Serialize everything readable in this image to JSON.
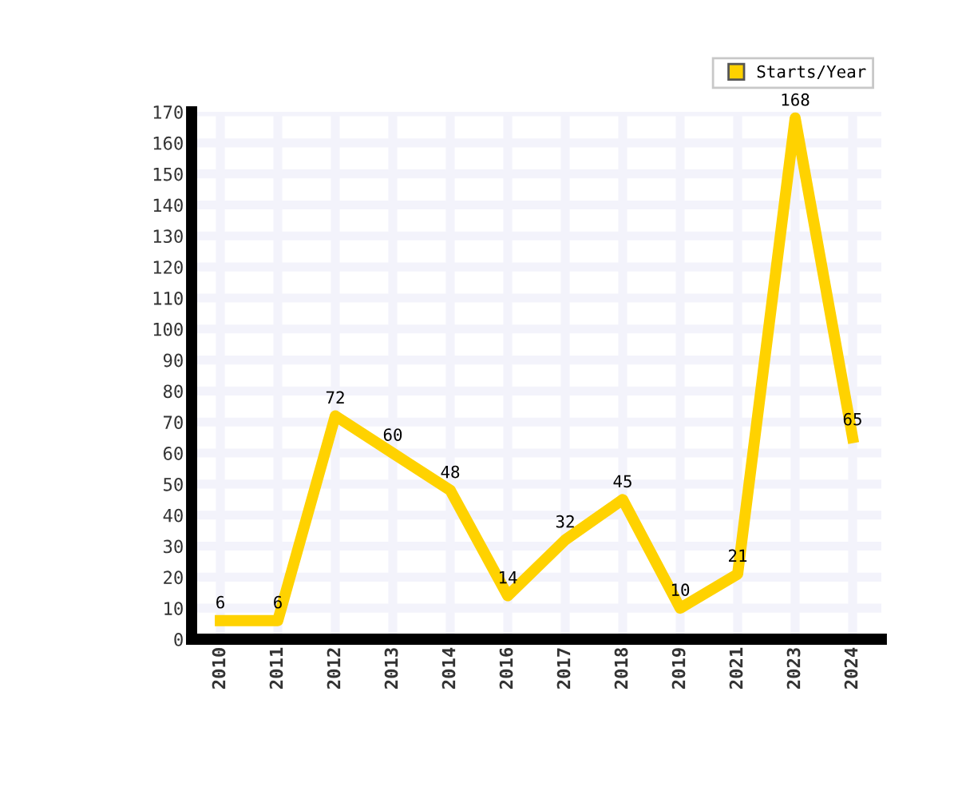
{
  "chart_data": {
    "type": "line",
    "categories": [
      "2010",
      "2011",
      "2012",
      "2013",
      "2014",
      "2016",
      "2017",
      "2018",
      "2019",
      "2021",
      "2023",
      "2024"
    ],
    "series": [
      {
        "name": "Starts/Year",
        "color": "#ffd200",
        "values": [
          6,
          6,
          72,
          60,
          48,
          14,
          32,
          45,
          10,
          21,
          168,
          65
        ]
      }
    ],
    "ylim": [
      0,
      170
    ],
    "yticks": [
      0,
      10,
      20,
      30,
      40,
      50,
      60,
      70,
      80,
      90,
      100,
      110,
      120,
      130,
      140,
      150,
      160,
      170
    ],
    "grid": true,
    "legend": "top right",
    "data_labels": true,
    "marker": "none",
    "line_style": "solid"
  }
}
